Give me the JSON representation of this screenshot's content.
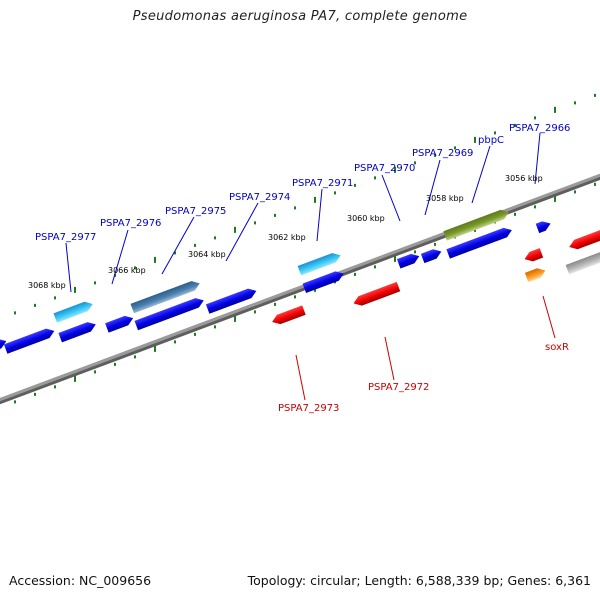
{
  "title": "Pseudomonas aeruginosa PA7, complete genome",
  "footer": {
    "accession": "Accession: NC_009656",
    "info": "Topology: circular; Length: 6,588,339 bp; Genes: 6,361"
  },
  "colors": {
    "forward_label": "#0000cc",
    "reverse_label": "#cc0000",
    "tick": "#1f7a1f",
    "backbone": "#777777"
  },
  "scale_labels": [
    "3056 kbp",
    "3058 kbp",
    "3060 kbp",
    "3062 kbp",
    "3064 kbp",
    "3066 kbp",
    "3068 kbp"
  ],
  "forward_gene_labels": [
    "PSPA7_2977",
    "PSPA7_2976",
    "PSPA7_2975",
    "PSPA7_2974",
    "PSPA7_2971",
    "PSPA7_2970",
    "PSPA7_2969",
    "pbpC",
    "PSPA7_2966"
  ],
  "reverse_gene_labels": [
    "PSPA7_2973",
    "PSPA7_2972",
    "soxR"
  ]
}
